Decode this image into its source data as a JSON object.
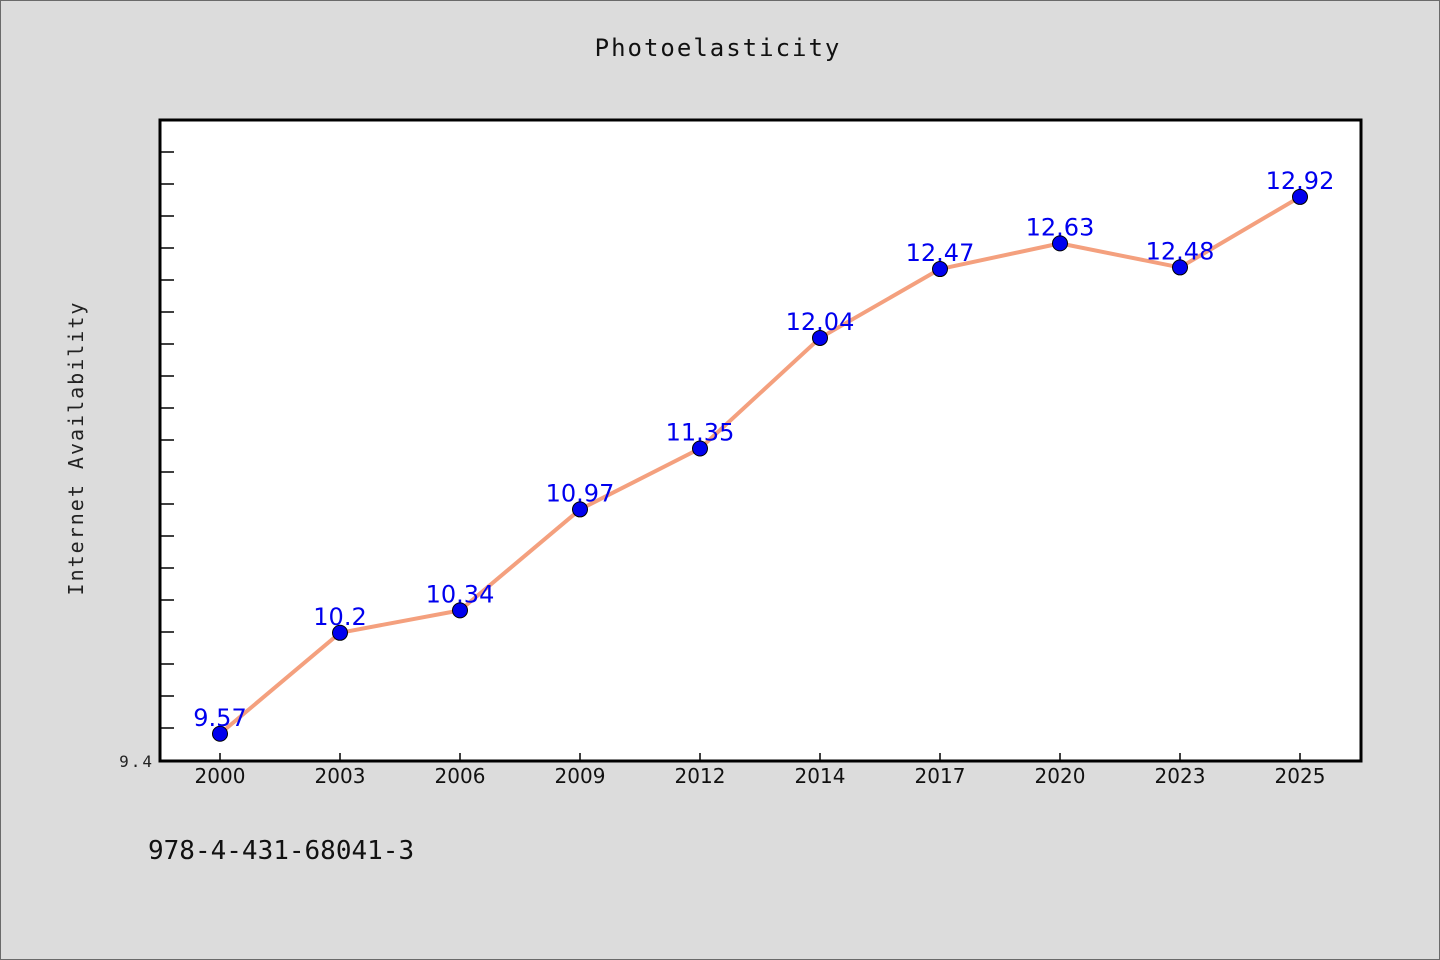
{
  "chart_data": {
    "type": "line",
    "title": "Photoelasticity",
    "ylabel": "Internet Availability",
    "xlabel": "",
    "categories": [
      "2000",
      "2003",
      "2006",
      "2009",
      "2012",
      "2014",
      "2017",
      "2020",
      "2023",
      "2025"
    ],
    "series": [
      {
        "values": [
          9.57,
          10.2,
          10.34,
          10.97,
          11.35,
          12.04,
          12.47,
          12.63,
          12.48,
          12.92
        ],
        "data_labels": [
          "9.57",
          "10.2",
          "10.34",
          "10.97",
          "11.35",
          "12.04",
          "12.47",
          "12.63",
          "12.48",
          "12.92"
        ],
        "line_color": "#f4a07e",
        "marker_color": "#0000ee"
      }
    ],
    "ylim": [
      9.4,
      13.4
    ],
    "y_tick_labels": [
      "9.4"
    ],
    "grid": false,
    "legend": "none"
  },
  "footer": {
    "code": "978-4-431-68041-3"
  },
  "colors": {
    "background": "#dcdcdc",
    "plot_background": "#ffffff",
    "axis": "#000000",
    "label": "#0000ee"
  }
}
